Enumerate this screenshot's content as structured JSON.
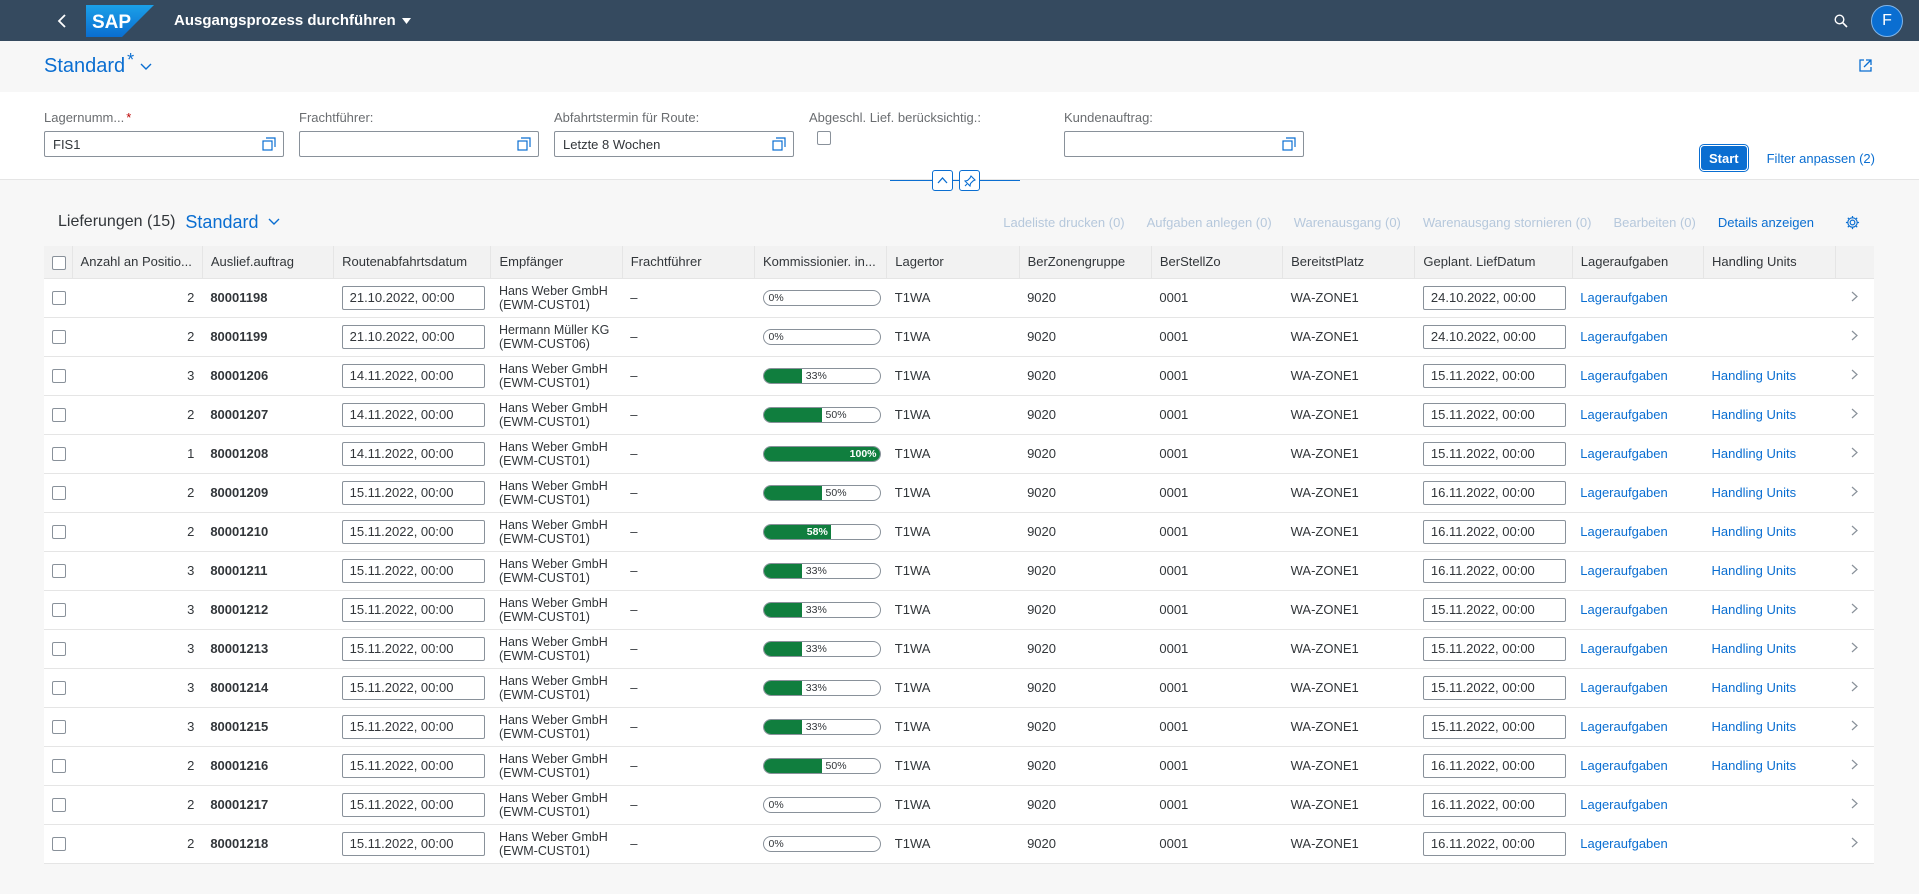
{
  "shell": {
    "title": "Ausgangsprozess durchführen",
    "avatar_initial": "F",
    "logo_text": "SAP"
  },
  "variant": {
    "name": "Standard",
    "modified_marker": "*"
  },
  "filters": {
    "lagernummer": {
      "label": "Lagernumm...",
      "value": "FIS1",
      "required": true
    },
    "frachtfuehrer": {
      "label": "Frachtführer:",
      "value": ""
    },
    "abfahrtstermin": {
      "label": "Abfahrtstermin für Route:",
      "value": "Letzte 8 Wochen"
    },
    "abgeschl": {
      "label": "Abgeschl. Lief. berücksichtig.:",
      "checked": false
    },
    "kundenauftrag": {
      "label": "Kundenauftrag:",
      "value": ""
    },
    "start_label": "Start",
    "adapt_label": "Filter anpassen (2)"
  },
  "table": {
    "title": "Lieferungen (15)",
    "variant": "Standard",
    "actions": {
      "ladeliste": "Ladeliste drucken (0)",
      "aufgaben": "Aufgaben anlegen (0)",
      "warenausgang": "Warenausgang (0)",
      "storno": "Warenausgang stornieren (0)",
      "bearbeiten": "Bearbeiten (0)",
      "details": "Details anzeigen"
    },
    "columns": [
      "Anzahl an Positio...",
      "Auslief.auftrag",
      "Routenabfahrtsdatum",
      "Empfänger",
      "Frachtführer",
      "Kommissionier. in...",
      "Lagertor",
      "BerZonengruppe",
      "BerStellZo",
      "BereitstPlatz",
      "Geplant. LiefDatum",
      "Lageraufgaben",
      "Handling Units"
    ],
    "rows": [
      {
        "anzahl": "2",
        "auftrag": "80001198",
        "route": "21.10.2022, 00:00",
        "emp1": "Hans Weber GmbH",
        "emp2": "(EWM-CUST01)",
        "fracht": "–",
        "progress": 0,
        "ptext": "0%",
        "tor": "T1WA",
        "zone": "9020",
        "stell": "0001",
        "platz": "WA-ZONE1",
        "lief": "24.10.2022, 00:00",
        "lager": "Lageraufgaben",
        "hu": ""
      },
      {
        "anzahl": "2",
        "auftrag": "80001199",
        "route": "21.10.2022, 00:00",
        "emp1": "Hermann Müller KG",
        "emp2": "(EWM-CUST06)",
        "fracht": "–",
        "progress": 0,
        "ptext": "0%",
        "tor": "T1WA",
        "zone": "9020",
        "stell": "0001",
        "platz": "WA-ZONE1",
        "lief": "24.10.2022, 00:00",
        "lager": "Lageraufgaben",
        "hu": ""
      },
      {
        "anzahl": "3",
        "auftrag": "80001206",
        "route": "14.11.2022, 00:00",
        "emp1": "Hans Weber GmbH",
        "emp2": "(EWM-CUST01)",
        "fracht": "–",
        "progress": 33,
        "ptext": "33%",
        "tor": "T1WA",
        "zone": "9020",
        "stell": "0001",
        "platz": "WA-ZONE1",
        "lief": "15.11.2022, 00:00",
        "lager": "Lageraufgaben",
        "hu": "Handling Units"
      },
      {
        "anzahl": "2",
        "auftrag": "80001207",
        "route": "14.11.2022, 00:00",
        "emp1": "Hans Weber GmbH",
        "emp2": "(EWM-CUST01)",
        "fracht": "–",
        "progress": 50,
        "ptext": "50%",
        "tor": "T1WA",
        "zone": "9020",
        "stell": "0001",
        "platz": "WA-ZONE1",
        "lief": "15.11.2022, 00:00",
        "lager": "Lageraufgaben",
        "hu": "Handling Units"
      },
      {
        "anzahl": "1",
        "auftrag": "80001208",
        "route": "14.11.2022, 00:00",
        "emp1": "Hans Weber GmbH",
        "emp2": "(EWM-CUST01)",
        "fracht": "–",
        "progress": 100,
        "ptext": "100%",
        "tor": "T1WA",
        "zone": "9020",
        "stell": "0001",
        "platz": "WA-ZONE1",
        "lief": "15.11.2022, 00:00",
        "lager": "Lageraufgaben",
        "hu": "Handling Units"
      },
      {
        "anzahl": "2",
        "auftrag": "80001209",
        "route": "15.11.2022, 00:00",
        "emp1": "Hans Weber GmbH",
        "emp2": "(EWM-CUST01)",
        "fracht": "–",
        "progress": 50,
        "ptext": "50%",
        "tor": "T1WA",
        "zone": "9020",
        "stell": "0001",
        "platz": "WA-ZONE1",
        "lief": "16.11.2022, 00:00",
        "lager": "Lageraufgaben",
        "hu": "Handling Units"
      },
      {
        "anzahl": "2",
        "auftrag": "80001210",
        "route": "15.11.2022, 00:00",
        "emp1": "Hans Weber GmbH",
        "emp2": "(EWM-CUST01)",
        "fracht": "–",
        "progress": 58,
        "ptext": "58%",
        "tor": "T1WA",
        "zone": "9020",
        "stell": "0001",
        "platz": "WA-ZONE1",
        "lief": "16.11.2022, 00:00",
        "lager": "Lageraufgaben",
        "hu": "Handling Units"
      },
      {
        "anzahl": "3",
        "auftrag": "80001211",
        "route": "15.11.2022, 00:00",
        "emp1": "Hans Weber GmbH",
        "emp2": "(EWM-CUST01)",
        "fracht": "–",
        "progress": 33,
        "ptext": "33%",
        "tor": "T1WA",
        "zone": "9020",
        "stell": "0001",
        "platz": "WA-ZONE1",
        "lief": "16.11.2022, 00:00",
        "lager": "Lageraufgaben",
        "hu": "Handling Units"
      },
      {
        "anzahl": "3",
        "auftrag": "80001212",
        "route": "15.11.2022, 00:00",
        "emp1": "Hans Weber GmbH",
        "emp2": "(EWM-CUST01)",
        "fracht": "–",
        "progress": 33,
        "ptext": "33%",
        "tor": "T1WA",
        "zone": "9020",
        "stell": "0001",
        "platz": "WA-ZONE1",
        "lief": "15.11.2022, 00:00",
        "lager": "Lageraufgaben",
        "hu": "Handling Units"
      },
      {
        "anzahl": "3",
        "auftrag": "80001213",
        "route": "15.11.2022, 00:00",
        "emp1": "Hans Weber GmbH",
        "emp2": "(EWM-CUST01)",
        "fracht": "–",
        "progress": 33,
        "ptext": "33%",
        "tor": "T1WA",
        "zone": "9020",
        "stell": "0001",
        "platz": "WA-ZONE1",
        "lief": "15.11.2022, 00:00",
        "lager": "Lageraufgaben",
        "hu": "Handling Units"
      },
      {
        "anzahl": "3",
        "auftrag": "80001214",
        "route": "15.11.2022, 00:00",
        "emp1": "Hans Weber GmbH",
        "emp2": "(EWM-CUST01)",
        "fracht": "–",
        "progress": 33,
        "ptext": "33%",
        "tor": "T1WA",
        "zone": "9020",
        "stell": "0001",
        "platz": "WA-ZONE1",
        "lief": "15.11.2022, 00:00",
        "lager": "Lageraufgaben",
        "hu": "Handling Units"
      },
      {
        "anzahl": "3",
        "auftrag": "80001215",
        "route": "15.11.2022, 00:00",
        "emp1": "Hans Weber GmbH",
        "emp2": "(EWM-CUST01)",
        "fracht": "–",
        "progress": 33,
        "ptext": "33%",
        "tor": "T1WA",
        "zone": "9020",
        "stell": "0001",
        "platz": "WA-ZONE1",
        "lief": "15.11.2022, 00:00",
        "lager": "Lageraufgaben",
        "hu": "Handling Units"
      },
      {
        "anzahl": "2",
        "auftrag": "80001216",
        "route": "15.11.2022, 00:00",
        "emp1": "Hans Weber GmbH",
        "emp2": "(EWM-CUST01)",
        "fracht": "–",
        "progress": 50,
        "ptext": "50%",
        "tor": "T1WA",
        "zone": "9020",
        "stell": "0001",
        "platz": "WA-ZONE1",
        "lief": "16.11.2022, 00:00",
        "lager": "Lageraufgaben",
        "hu": "Handling Units"
      },
      {
        "anzahl": "2",
        "auftrag": "80001217",
        "route": "15.11.2022, 00:00",
        "emp1": "Hans Weber GmbH",
        "emp2": "(EWM-CUST01)",
        "fracht": "–",
        "progress": 0,
        "ptext": "0%",
        "tor": "T1WA",
        "zone": "9020",
        "stell": "0001",
        "platz": "WA-ZONE1",
        "lief": "16.11.2022, 00:00",
        "lager": "Lageraufgaben",
        "hu": ""
      },
      {
        "anzahl": "2",
        "auftrag": "80001218",
        "route": "15.11.2022, 00:00",
        "emp1": "Hans Weber GmbH",
        "emp2": "(EWM-CUST01)",
        "fracht": "–",
        "progress": 0,
        "ptext": "0%",
        "tor": "T1WA",
        "zone": "9020",
        "stell": "0001",
        "platz": "WA-ZONE1",
        "lief": "16.11.2022, 00:00",
        "lager": "Lageraufgaben",
        "hu": ""
      }
    ]
  },
  "icons": {
    "back": "back-icon",
    "search": "search-icon",
    "share": "share-icon",
    "value_help": "value-help-icon",
    "settings": "gear-icon",
    "nav": "chevron-right-icon",
    "collapse": "chevron-up-icon",
    "pin": "pin-icon"
  },
  "colors": {
    "shell": "#354a5f",
    "accent": "#0a6ed1",
    "progress": "#107e3e"
  }
}
